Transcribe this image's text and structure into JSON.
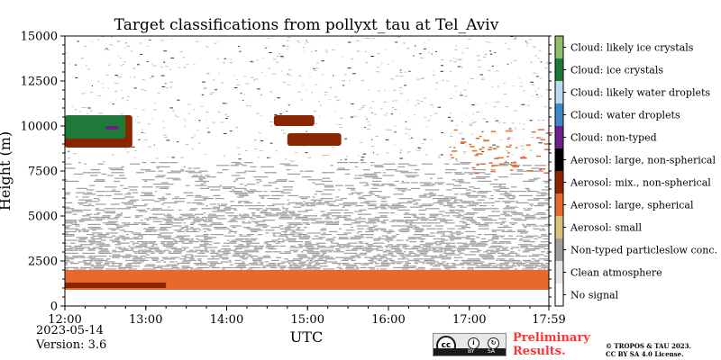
{
  "chart_data": {
    "type": "heatmap",
    "title": "Target classifications from pollyxt_tau at Tel_Aviv",
    "xlabel": "UTC",
    "ylabel": "Height (m)",
    "xlim": [
      "12:00",
      "17:59"
    ],
    "ylim": [
      0,
      15000
    ],
    "x_ticks": [
      "12:00",
      "13:00",
      "14:00",
      "15:00",
      "16:00",
      "17:00",
      "17:59"
    ],
    "y_ticks": [
      0,
      2500,
      5000,
      7500,
      10000,
      12500,
      15000
    ],
    "legend_placement": "right colorbar",
    "categories": [
      {
        "label": "Cloud: likely ice crystals",
        "color": "#8fbf6a"
      },
      {
        "label": "Cloud: ice crystals",
        "color": "#1f7a3a"
      },
      {
        "label": "Cloud: likely water droplets",
        "color": "#bcd9f2"
      },
      {
        "label": "Cloud: water droplets",
        "color": "#3f88c5"
      },
      {
        "label": "Cloud: non-typed",
        "color": "#6e1f8a"
      },
      {
        "label": "Aerosol: large, non-spherical",
        "color": "#000000"
      },
      {
        "label": "Aerosol: mix., non-spherical",
        "color": "#8b2500"
      },
      {
        "label": "Aerosol: large, spherical",
        "color": "#e8692b"
      },
      {
        "label": "Aerosol: small",
        "color": "#d9c27a"
      },
      {
        "label": "Non-typed particleslow conc.",
        "color": "#9e9e9e"
      },
      {
        "label": "Clean atmosphere",
        "color": "#e6e6e6"
      },
      {
        "label": "No signal",
        "color": "#ffffff"
      }
    ],
    "regions": [
      {
        "class": "Non-typed particleslow conc.",
        "x": [
          "12:00",
          "17:59"
        ],
        "y": [
          2000,
          8000
        ],
        "density": "speckled"
      },
      {
        "class": "Aerosol: large, spherical",
        "x": [
          "12:00",
          "17:59"
        ],
        "y": [
          900,
          2000
        ]
      },
      {
        "class": "Aerosol: mix., non-spherical",
        "x": [
          "12:00",
          "13:15"
        ],
        "y": [
          1000,
          1300
        ]
      },
      {
        "class": "Aerosol: mix., non-spherical",
        "x": [
          "12:00",
          "12:50"
        ],
        "y": [
          8800,
          10600
        ]
      },
      {
        "class": "Cloud: ice crystals",
        "x": [
          "12:00",
          "12:45"
        ],
        "y": [
          9300,
          10600
        ]
      },
      {
        "class": "Cloud: non-typed",
        "x": [
          "12:30",
          "12:40"
        ],
        "y": [
          9800,
          10000
        ]
      },
      {
        "class": "Aerosol: mix., non-spherical",
        "x": [
          "14:35",
          "15:05"
        ],
        "y": [
          10000,
          10600
        ]
      },
      {
        "class": "Aerosol: mix., non-spherical",
        "x": [
          "14:45",
          "15:25"
        ],
        "y": [
          8900,
          9600
        ]
      },
      {
        "class": "Aerosol: large, spherical",
        "x": [
          "16:45",
          "17:59"
        ],
        "y": [
          7400,
          9900
        ],
        "density": "sparse"
      }
    ]
  },
  "footer": {
    "date": "2023-05-14",
    "version": "Version: 3.6",
    "preliminary_line1": "Preliminary",
    "preliminary_line2": "Results.",
    "copyright_line1": "© TROPOS & TAU 2023.",
    "copyright_line2": "CC BY SA 4.0 License."
  },
  "license_badge": {
    "cc": "cc",
    "by": "BY",
    "sa": "SA"
  }
}
